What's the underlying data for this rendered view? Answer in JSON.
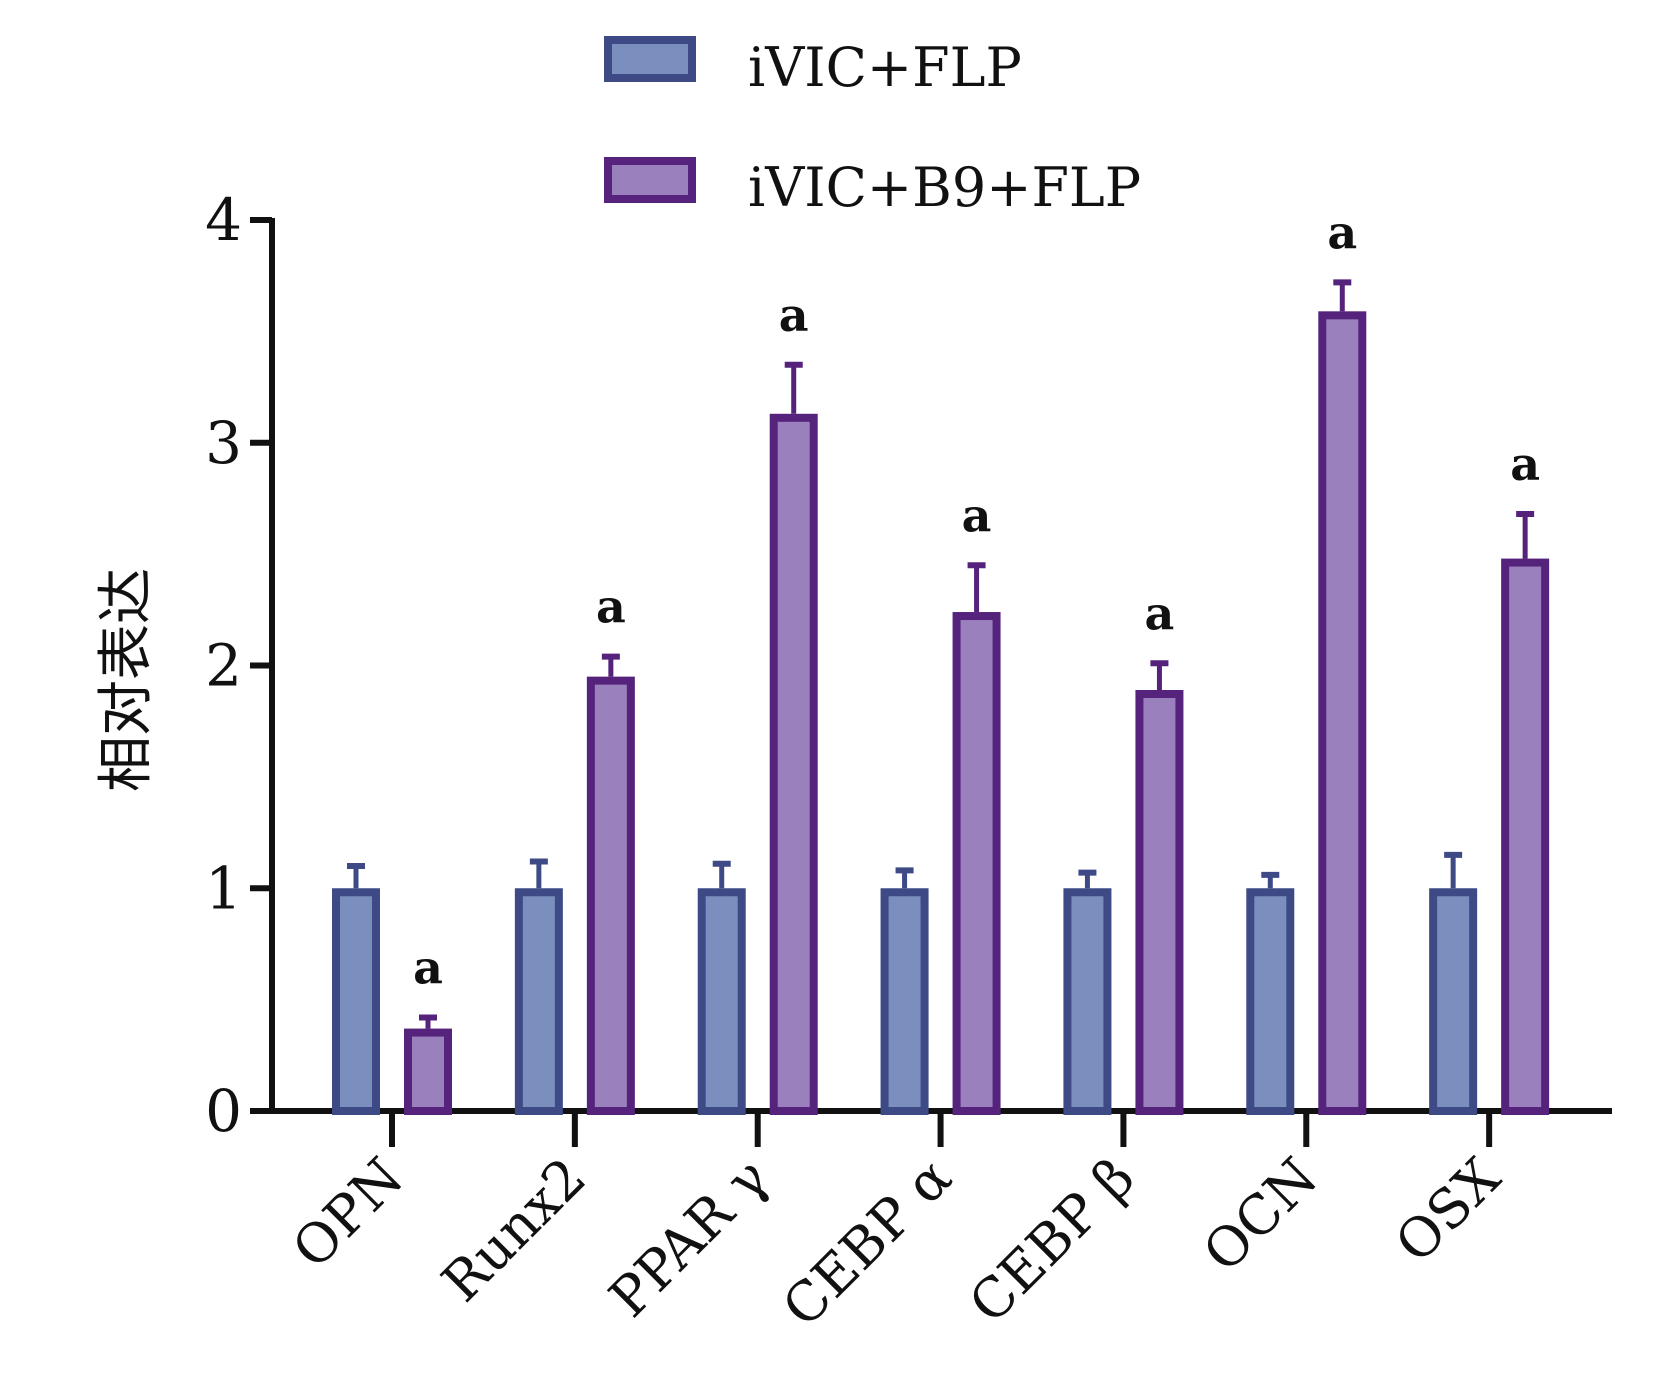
{
  "chart_data": {
    "type": "bar",
    "title": "",
    "xlabel": "",
    "ylabel": "相对表达",
    "ylim": [
      0,
      4
    ],
    "yticks": [
      "0",
      "1",
      "2",
      "3",
      "4"
    ],
    "categories": [
      "OPN",
      "Runx2",
      "PPAR γ",
      "CEBP α",
      "CEBP β",
      "OCN",
      "OSX"
    ],
    "series": [
      {
        "name": "iVIC+FLP",
        "color": "#7b8fbf",
        "edge": "#3d4a86",
        "values": [
          1,
          1,
          1,
          1,
          1,
          1,
          1
        ],
        "errors": [
          0.1,
          0.12,
          0.11,
          0.08,
          0.07,
          0.06,
          0.15
        ]
      },
      {
        "name": "iVIC+B9+FLP",
        "color": "#9a80bc",
        "edge": "#55237c",
        "values": [
          0.37,
          1.95,
          3.13,
          2.24,
          1.89,
          3.59,
          2.48
        ],
        "errors": [
          0.05,
          0.09,
          0.22,
          0.21,
          0.12,
          0.13,
          0.2
        ]
      }
    ],
    "annotations": [
      "a",
      "a",
      "a",
      "a",
      "a",
      "a",
      "a"
    ],
    "legend_position": "top-center"
  }
}
